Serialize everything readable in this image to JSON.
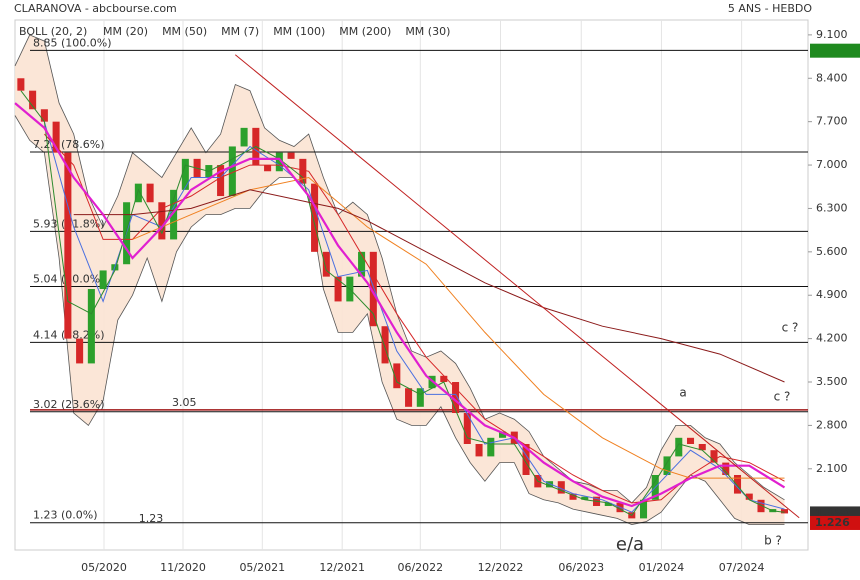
{
  "chart_data": {
    "type": "candlestick",
    "title": "CLARANOVA - abcbourse.com",
    "subtitle": "5 ANS - HEBDO",
    "xlim": [
      0,
      270
    ],
    "xticks": [
      {
        "value": 30.3,
        "label": "05/2020"
      },
      {
        "value": 57.2,
        "label": "11/2020"
      },
      {
        "value": 84.2,
        "label": "05/2021"
      },
      {
        "value": 111.4,
        "label": "12/2021"
      },
      {
        "value": 138.0,
        "label": "06/2022"
      },
      {
        "value": 165.3,
        "label": "12/2022"
      },
      {
        "value": 192.8,
        "label": "06/2023"
      },
      {
        "value": 220.1,
        "label": "01/2024"
      },
      {
        "value": 247.4,
        "label": "07/2024"
      }
    ],
    "ylim": [
      0.79,
      9.34
    ],
    "yticks": [
      {
        "value": 9.1,
        "label": "9.100"
      },
      {
        "value": 8.4,
        "label": "8.400"
      },
      {
        "value": 7.7,
        "label": "7.700"
      },
      {
        "value": 7.0,
        "label": "7.000"
      },
      {
        "value": 6.3,
        "label": "6.300"
      },
      {
        "value": 5.6,
        "label": "5.600"
      },
      {
        "value": 4.9,
        "label": "4.900"
      },
      {
        "value": 4.2,
        "label": "4.200"
      },
      {
        "value": 3.5,
        "label": "3.500"
      },
      {
        "value": 2.8,
        "label": "2.800"
      },
      {
        "value": 2.1,
        "label": "2.100"
      }
    ],
    "grid": true,
    "up_color": "#2ca02c",
    "down_color": "#d62728",
    "x": [
      2,
      6,
      10,
      14,
      18,
      22,
      26,
      30,
      34,
      38,
      42,
      46,
      50,
      54,
      58,
      62,
      66,
      70,
      74,
      78,
      82,
      86,
      90,
      94,
      98,
      102,
      106,
      110,
      114,
      118,
      122,
      126,
      130,
      134,
      138,
      142,
      146,
      150,
      154,
      158,
      162,
      166,
      170,
      174,
      178,
      182,
      186,
      190,
      194,
      198,
      202,
      206,
      210,
      214,
      218,
      222,
      226,
      230,
      234,
      238,
      242,
      246,
      250,
      254,
      258,
      262
    ],
    "open": [
      8.4,
      8.2,
      7.9,
      7.7,
      7.2,
      4.2,
      3.8,
      5.0,
      5.3,
      5.4,
      6.4,
      6.7,
      6.4,
      5.8,
      6.6,
      7.1,
      6.8,
      7.0,
      6.5,
      7.3,
      7.6,
      7.0,
      6.9,
      7.2,
      7.1,
      6.7,
      5.6,
      5.2,
      4.8,
      5.2,
      5.6,
      4.4,
      3.8,
      3.4,
      3.1,
      3.4,
      3.6,
      3.5,
      3.0,
      2.5,
      2.3,
      2.6,
      2.7,
      2.5,
      2.0,
      1.8,
      1.9,
      1.7,
      1.6,
      1.65,
      1.5,
      1.55,
      1.4,
      1.3,
      1.6,
      2.0,
      2.3,
      2.6,
      2.5,
      2.4,
      2.2,
      2.0,
      1.7,
      1.6,
      1.4,
      1.45
    ],
    "close": [
      8.2,
      7.9,
      7.7,
      7.2,
      4.2,
      3.8,
      5.0,
      5.3,
      5.4,
      6.4,
      6.7,
      6.4,
      5.8,
      6.6,
      7.1,
      6.8,
      7.0,
      6.5,
      7.3,
      7.6,
      7.0,
      6.9,
      7.2,
      7.1,
      6.7,
      5.6,
      5.2,
      4.8,
      5.2,
      5.6,
      4.4,
      3.8,
      3.4,
      3.1,
      3.4,
      3.6,
      3.5,
      3.0,
      2.5,
      2.3,
      2.6,
      2.7,
      2.5,
      2.0,
      1.8,
      1.9,
      1.7,
      1.6,
      1.65,
      1.5,
      1.55,
      1.4,
      1.3,
      1.6,
      2.0,
      2.3,
      2.6,
      2.5,
      2.4,
      2.2,
      2.0,
      1.7,
      1.6,
      1.4,
      1.45,
      1.38
    ],
    "bollinger": {
      "name": "BOLL (20, 2)",
      "color": "#555555",
      "fill": "#fbe3d3",
      "x": [
        0,
        5,
        10,
        15,
        20,
        25,
        30,
        35,
        40,
        45,
        50,
        55,
        60,
        65,
        70,
        75,
        80,
        85,
        90,
        95,
        100,
        105,
        110,
        115,
        120,
        125,
        130,
        135,
        140,
        145,
        150,
        155,
        160,
        165,
        170,
        175,
        180,
        185,
        190,
        195,
        200,
        205,
        210,
        215,
        220,
        225,
        230,
        235,
        240,
        245,
        250,
        255,
        262
      ],
      "upper": [
        8.6,
        9.1,
        9.0,
        8.0,
        7.5,
        6.5,
        6.0,
        6.5,
        7.2,
        7.0,
        6.8,
        7.2,
        7.6,
        7.2,
        7.5,
        8.3,
        8.2,
        7.6,
        7.4,
        7.3,
        7.5,
        6.8,
        6.2,
        6.4,
        6.2,
        5.5,
        4.6,
        4.0,
        3.9,
        4.0,
        3.8,
        3.4,
        2.9,
        3.0,
        2.9,
        2.7,
        2.3,
        2.1,
        1.9,
        1.85,
        1.75,
        1.75,
        1.55,
        1.8,
        2.4,
        2.8,
        2.8,
        2.6,
        2.5,
        2.2,
        2.0,
        1.8,
        1.6
      ],
      "lower": [
        7.8,
        7.4,
        7.2,
        5.5,
        3.0,
        2.8,
        3.2,
        4.5,
        4.9,
        5.5,
        4.8,
        5.6,
        6.0,
        6.2,
        6.2,
        6.3,
        6.3,
        6.6,
        6.8,
        6.8,
        6.5,
        5.0,
        4.3,
        4.3,
        4.6,
        3.5,
        2.9,
        2.8,
        2.8,
        3.1,
        2.6,
        2.2,
        1.9,
        2.2,
        2.2,
        1.7,
        1.6,
        1.55,
        1.45,
        1.4,
        1.35,
        1.3,
        1.2,
        1.25,
        1.4,
        1.7,
        2.0,
        1.9,
        1.6,
        1.3,
        1.2,
        1.2,
        1.2
      ]
    },
    "series": [
      {
        "name": "MM (20)",
        "color": "#4a6fe0",
        "x": [
          10,
          20,
          30,
          40,
          50,
          60,
          70,
          80,
          90,
          100,
          110,
          120,
          130,
          140,
          150,
          160,
          170,
          180,
          190,
          200,
          210,
          220,
          230,
          240,
          250,
          262
        ],
        "values": [
          7.7,
          6.0,
          4.8,
          6.2,
          6.0,
          6.8,
          6.8,
          7.3,
          7.0,
          6.6,
          5.2,
          5.3,
          4.0,
          3.3,
          3.3,
          2.5,
          2.6,
          1.9,
          1.7,
          1.6,
          1.4,
          1.9,
          2.4,
          2.1,
          1.6,
          1.45
        ]
      },
      {
        "name": "MM (50)",
        "color": "#d62728",
        "x": [
          10,
          20,
          30,
          40,
          50,
          60,
          70,
          80,
          90,
          100,
          110,
          120,
          130,
          140,
          150,
          160,
          170,
          180,
          190,
          200,
          210,
          220,
          230,
          240,
          250,
          262
        ],
        "values": [
          7.5,
          7.0,
          5.8,
          5.8,
          6.3,
          6.5,
          6.8,
          7.0,
          7.0,
          6.9,
          6.2,
          5.4,
          4.6,
          3.9,
          3.4,
          2.9,
          2.6,
          2.3,
          2.0,
          1.75,
          1.55,
          1.6,
          2.0,
          2.3,
          2.2,
          1.9
        ]
      },
      {
        "name": "MM (7)",
        "color": "#2e8b2e",
        "x": [
          2,
          10,
          18,
          26,
          34,
          42,
          50,
          58,
          66,
          74,
          82,
          90,
          98,
          106,
          114,
          122,
          130,
          138,
          146,
          154,
          162,
          170,
          178,
          186,
          194,
          202,
          210,
          218,
          226,
          234,
          242,
          250,
          258,
          262
        ],
        "values": [
          8.2,
          7.7,
          4.8,
          4.6,
          5.3,
          6.6,
          5.9,
          7.0,
          6.9,
          7.1,
          7.3,
          7.1,
          6.8,
          5.3,
          5.0,
          4.6,
          3.5,
          3.3,
          3.5,
          2.6,
          2.5,
          2.5,
          1.9,
          1.75,
          1.6,
          1.55,
          1.35,
          1.9,
          2.5,
          2.4,
          2.05,
          1.6,
          1.42,
          1.4
        ]
      },
      {
        "name": "MM (100)",
        "color": "#f08020",
        "x": [
          40,
          60,
          80,
          100,
          110,
          120,
          140,
          160,
          180,
          200,
          220,
          230,
          240,
          262
        ],
        "values": [
          5.8,
          6.2,
          6.6,
          6.8,
          6.4,
          6.0,
          5.4,
          4.3,
          3.3,
          2.6,
          2.1,
          1.95,
          1.95,
          1.95
        ]
      },
      {
        "name": "MM (200)",
        "color": "#8b1a1a",
        "x": [
          20,
          40,
          60,
          80,
          100,
          110,
          120,
          140,
          160,
          180,
          200,
          220,
          240,
          262
        ],
        "values": [
          6.2,
          6.2,
          6.3,
          6.6,
          6.4,
          6.3,
          6.1,
          5.6,
          5.1,
          4.7,
          4.4,
          4.2,
          3.95,
          3.5
        ]
      },
      {
        "name": "MM (30)",
        "color": "#e020d0",
        "x": [
          0,
          10,
          20,
          30,
          40,
          50,
          60,
          70,
          80,
          90,
          100,
          110,
          120,
          130,
          140,
          150,
          160,
          170,
          180,
          190,
          200,
          210,
          220,
          230,
          240,
          250,
          262
        ],
        "values": [
          8.0,
          7.6,
          6.8,
          6.2,
          5.5,
          6.0,
          6.6,
          6.9,
          7.1,
          7.1,
          6.5,
          5.7,
          5.1,
          4.3,
          3.6,
          3.2,
          2.8,
          2.6,
          2.2,
          1.9,
          1.65,
          1.5,
          1.7,
          1.95,
          2.15,
          2.15,
          1.8
        ]
      }
    ],
    "levels": [
      {
        "value": 8.85,
        "label": "8.85 (100.0%)"
      },
      {
        "value": 7.21,
        "label": "7.21 (78.6%)"
      },
      {
        "value": 5.93,
        "label": "5.93 (61.8%)"
      },
      {
        "value": 5.04,
        "label": "5.04 (50.0%)"
      },
      {
        "value": 4.14,
        "label": "4.14 (38.2%)"
      },
      {
        "value": 3.02,
        "label": "3.02 (23.6%)"
      },
      {
        "value": 1.23,
        "label": "1.23 (0.0%)"
      }
    ],
    "resistance": {
      "value": 3.05,
      "color": "#a01818"
    },
    "trendline": {
      "color": "#c02020",
      "x": [
        75,
        267
      ],
      "values": [
        8.78,
        1.31
      ]
    },
    "price_tags": [
      {
        "value": 8.845,
        "color": "#1f8a1f"
      },
      {
        "value": 1.38,
        "label": "1.380",
        "color": "#333333"
      },
      {
        "value": 1.226,
        "label": "1.226",
        "color": "#d01010"
      }
    ],
    "annotations": [
      {
        "text": "a",
        "color": "#1a1a80"
      },
      {
        "text": "c ?",
        "color": "#1a1a80"
      },
      {
        "text": "c ?",
        "color": "#1a1a80"
      },
      {
        "text": "b ?",
        "color": "#1a1a80"
      },
      {
        "text": "e/a",
        "color": "#a01818"
      },
      {
        "text": "1.23",
        "color": "#2a8a2a"
      }
    ]
  }
}
